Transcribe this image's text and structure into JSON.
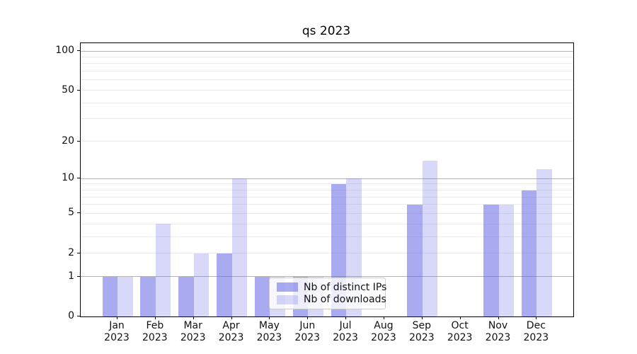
{
  "chart_data": {
    "type": "bar",
    "title": "qs 2023",
    "categories": [
      "Jan 2023",
      "Feb 2023",
      "Mar 2023",
      "Apr 2023",
      "May 2023",
      "Jun 2023",
      "Jul 2023",
      "Aug 2023",
      "Sep 2023",
      "Oct 2023",
      "Nov 2023",
      "Dec 2023"
    ],
    "series": [
      {
        "name": "Nb of distinct IPs",
        "color": "rgba(100,100,230,0.55)",
        "values": [
          1,
          1,
          1,
          2,
          1,
          1,
          9,
          null,
          6,
          null,
          6,
          8
        ]
      },
      {
        "name": "Nb of downloads",
        "color": "rgba(100,100,230,0.25)",
        "values": [
          1,
          4,
          2,
          10,
          1,
          1,
          10,
          null,
          14,
          null,
          6,
          12
        ]
      }
    ],
    "xlabel": "",
    "ylabel": "",
    "yscale": "log1p",
    "ylim": [
      0,
      114
    ],
    "yticks": [
      0,
      1,
      2,
      5,
      10,
      20,
      50,
      100
    ],
    "grid_major": [
      1,
      10,
      100
    ],
    "grid_minor": [
      2,
      3,
      4,
      5,
      6,
      7,
      8,
      9,
      20,
      30,
      40,
      50,
      60,
      70,
      80,
      90
    ],
    "legend": {
      "position": "lower center"
    },
    "colors": {
      "grid_major": "#b3b3b3",
      "grid_minor": "#ebebeb",
      "axis": "#000000",
      "background": "#ffffff"
    }
  }
}
